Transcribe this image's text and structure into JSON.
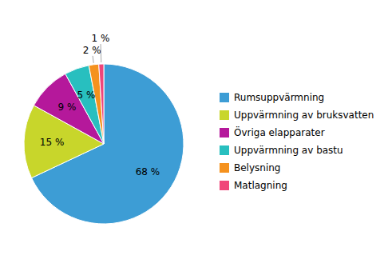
{
  "chart_data": {
    "type": "pie",
    "categories": [
      "Rumsuppvärmning",
      "Uppvärmning av bruksvatten",
      "Övriga elapparater",
      "Uppvärmning av bastu",
      "Belysning",
      "Matlagning"
    ],
    "values": [
      68,
      15,
      9,
      5,
      2,
      1
    ],
    "value_labels": [
      "68 %",
      "15 %",
      "9 %",
      "5 %",
      "2 %",
      "1 %"
    ],
    "colors": [
      "#3d9dd5",
      "#c8d62b",
      "#b5189b",
      "#28bfbf",
      "#f5921e",
      "#f0457a"
    ],
    "legend": "right",
    "data_labels": true
  }
}
